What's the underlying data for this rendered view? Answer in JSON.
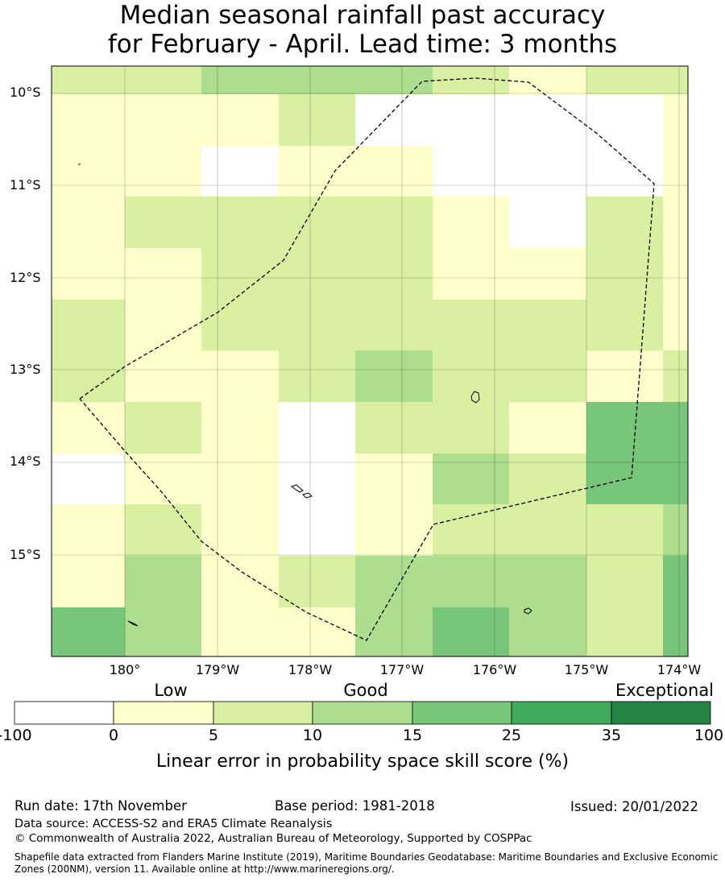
{
  "title": {
    "line1": "Median seasonal rainfall past accuracy",
    "line2": "for February - April. Lead time: 3 months"
  },
  "map": {
    "lat_labels": [
      "10°S",
      "11°S",
      "12°S",
      "13°S",
      "14°S",
      "15°S"
    ],
    "lon_labels": [
      "180°",
      "179°W",
      "178°W",
      "177°W",
      "176°W",
      "175°W",
      "174°W"
    ],
    "category_grid": [
      [
        2,
        2,
        3,
        3,
        3,
        2,
        1,
        2,
        2
      ],
      [
        1,
        1,
        1,
        2,
        0,
        0,
        0,
        0,
        1
      ],
      [
        1,
        1,
        0,
        1,
        1,
        0,
        0,
        0,
        1
      ],
      [
        1,
        2,
        2,
        2,
        2,
        1,
        0,
        2,
        1
      ],
      [
        1,
        1,
        2,
        2,
        2,
        1,
        1,
        2,
        1
      ],
      [
        2,
        1,
        2,
        2,
        2,
        2,
        2,
        2,
        1
      ],
      [
        2,
        1,
        1,
        2,
        3,
        2,
        2,
        1,
        2
      ],
      [
        1,
        2,
        1,
        0,
        2,
        2,
        1,
        4,
        4
      ],
      [
        0,
        1,
        1,
        0,
        1,
        3,
        2,
        4,
        4
      ],
      [
        1,
        2,
        1,
        0,
        1,
        2,
        2,
        2,
        3
      ],
      [
        1,
        3,
        1,
        2,
        3,
        3,
        3,
        2,
        4
      ],
      [
        4,
        3,
        1,
        1,
        3,
        4,
        3,
        2,
        4
      ]
    ],
    "eez_boundary": "Exclusive Economic Zone (dashed)"
  },
  "legend": {
    "categories": [
      "Low",
      "Good",
      "Exceptional"
    ],
    "ticks": [
      "-100",
      "0",
      "5",
      "10",
      "15",
      "25",
      "35",
      "100"
    ],
    "colors": [
      "#ffffff",
      "#ffffcc",
      "#d9f0a3",
      "#addd8e",
      "#78c679",
      "#41ab5d",
      "#238443"
    ],
    "title": "Linear error in probability space skill score (%)"
  },
  "footer": {
    "run_date": "Run date: 17th November",
    "base_period": "Base period: 1981-2018",
    "issued": "Issued: 20/01/2022",
    "data_source": "Data source: ACCESS-S2 and ERA5 Climate Reanalysis",
    "copyright": "© Commonwealth of Australia 2022, Australian Bureau of Meteorology, Supported by COSPPac",
    "shapefile": "Shapefile data extracted from Flanders Marine Institute (2019), Maritime Boundaries Geodatabase: Maritime Boundaries and Exclusive Economic Zones (200NM), version 11. Available online at http://www.marineregions.org/."
  }
}
